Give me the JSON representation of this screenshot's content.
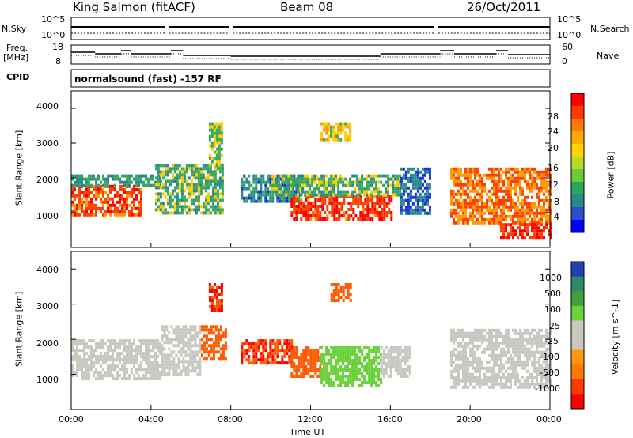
{
  "header": {
    "station": "King Salmon (fitACF)",
    "beam": "Beam 08",
    "date": "26/Oct/2011"
  },
  "summary": {
    "nsky_label": "N.Sky",
    "nsearch_label": "N.Search",
    "nsky_ticks": [
      "10^5",
      "10^0"
    ],
    "nsearch_ticks": [
      "10^5",
      "10^0"
    ],
    "freq_label_1": "Freq.",
    "freq_label_2": "[MHz]",
    "freq_ticks": [
      "18",
      "8"
    ],
    "nave_label": "Nave",
    "nave_ticks": [
      "60",
      "0"
    ],
    "cpid_label": "CPID",
    "cpid_text": "normalsound (fast) -157 RF"
  },
  "panels": {
    "ylabel": "Slant Range [km]",
    "yticks": [
      "4000",
      "3000",
      "2000",
      "1000"
    ],
    "xlabel": "Time UT",
    "xticks": [
      "00:00",
      "04:00",
      "08:00",
      "12:00",
      "16:00",
      "20:00",
      "00:00"
    ]
  },
  "power_scale": {
    "label": "Power [dB]",
    "ticks": [
      "28",
      "24",
      "20",
      "16",
      "12",
      "8",
      "4"
    ],
    "colors": [
      "#ff0000",
      "#ff3a00",
      "#ff7a00",
      "#ffaa00",
      "#ffd200",
      "#b4dc28",
      "#6acc3c",
      "#2aa85a",
      "#2a8a8a",
      "#2850c8",
      "#0000ff"
    ]
  },
  "velocity_scale": {
    "label": "Velocity [m s^-1]",
    "ticks": [
      "1000",
      "500",
      "100",
      "25",
      "-25",
      "-100",
      "-500",
      "-1000"
    ],
    "colors": [
      "#2040b4",
      "#2a8a6a",
      "#40a040",
      "#6ad23a",
      "#c8c8c0",
      "#c8c8c0",
      "#ff9a10",
      "#ff7a00",
      "#ff3a00",
      "#ff0000"
    ]
  },
  "chart_data": {
    "type": "heatmap",
    "x_range_hours": [
      0,
      24
    ],
    "y_range_km": [
      180,
      4500
    ],
    "ylim": [
      0,
      4500
    ],
    "power_cmap": [
      [
        28,
        "#ff0000"
      ],
      [
        24,
        "#ff4000"
      ],
      [
        20,
        "#ff9a00"
      ],
      [
        16,
        "#ffcc00"
      ],
      [
        12,
        "#3aa860"
      ],
      [
        8,
        "#2a8a8a"
      ],
      [
        4,
        "#1830e0"
      ]
    ],
    "velocity_cmap": [
      [
        1000,
        "#2040b4"
      ],
      [
        500,
        "#2a8a6a"
      ],
      [
        100,
        "#6ad23a"
      ],
      [
        25,
        "#c8c8c0"
      ],
      [
        -25,
        "#c8c8c0"
      ],
      [
        -100,
        "#ff9a10"
      ],
      [
        -500,
        "#ff5a00"
      ],
      [
        -1000,
        "#ff0000"
      ]
    ],
    "power_regions": [
      {
        "t": [
          0.0,
          3.5
        ],
        "r": [
          900,
          1800
        ],
        "value": 26
      },
      {
        "t": [
          0.0,
          4.5
        ],
        "r": [
          1800,
          2100
        ],
        "value": 12
      },
      {
        "t": [
          4.2,
          7.6
        ],
        "r": [
          1000,
          2400
        ],
        "value": 14
      },
      {
        "t": [
          6.9,
          7.6
        ],
        "r": [
          2400,
          3600
        ],
        "value": 16
      },
      {
        "t": [
          8.5,
          11.5
        ],
        "r": [
          1300,
          2100
        ],
        "value": 10
      },
      {
        "t": [
          11.0,
          16.0
        ],
        "r": [
          850,
          1500
        ],
        "value": 27
      },
      {
        "t": [
          10.0,
          16.5
        ],
        "r": [
          1500,
          2100
        ],
        "value": 14
      },
      {
        "t": [
          12.5,
          14.0
        ],
        "r": [
          3100,
          3600
        ],
        "value": 18
      },
      {
        "t": [
          16.5,
          18.0
        ],
        "r": [
          1000,
          2300
        ],
        "value": 8
      },
      {
        "t": [
          19.0,
          24.0
        ],
        "r": [
          700,
          2300
        ],
        "value": 24
      },
      {
        "t": [
          21.5,
          24.0
        ],
        "r": [
          250,
          700
        ],
        "value": 28
      }
    ],
    "velocity_regions": [
      {
        "t": [
          0.0,
          4.5
        ],
        "r": [
          900,
          2000
        ],
        "value": 0
      },
      {
        "t": [
          4.5,
          6.5
        ],
        "r": [
          1000,
          2400
        ],
        "value": 0
      },
      {
        "t": [
          6.5,
          7.7
        ],
        "r": [
          1500,
          2400
        ],
        "value": -400
      },
      {
        "t": [
          6.9,
          7.6
        ],
        "r": [
          2800,
          3600
        ],
        "value": -500
      },
      {
        "t": [
          8.5,
          11.0
        ],
        "r": [
          1300,
          2000
        ],
        "value": -500
      },
      {
        "t": [
          11.0,
          12.5
        ],
        "r": [
          900,
          1800
        ],
        "value": -150
      },
      {
        "t": [
          12.5,
          15.5
        ],
        "r": [
          700,
          1800
        ],
        "value": 300
      },
      {
        "t": [
          15.5,
          17.0
        ],
        "r": [
          900,
          1800
        ],
        "value": 0
      },
      {
        "t": [
          13.0,
          14.0
        ],
        "r": [
          3100,
          3600
        ],
        "value": -400
      },
      {
        "t": [
          19.0,
          24.0
        ],
        "r": [
          600,
          2300
        ],
        "value": 0
      }
    ]
  }
}
